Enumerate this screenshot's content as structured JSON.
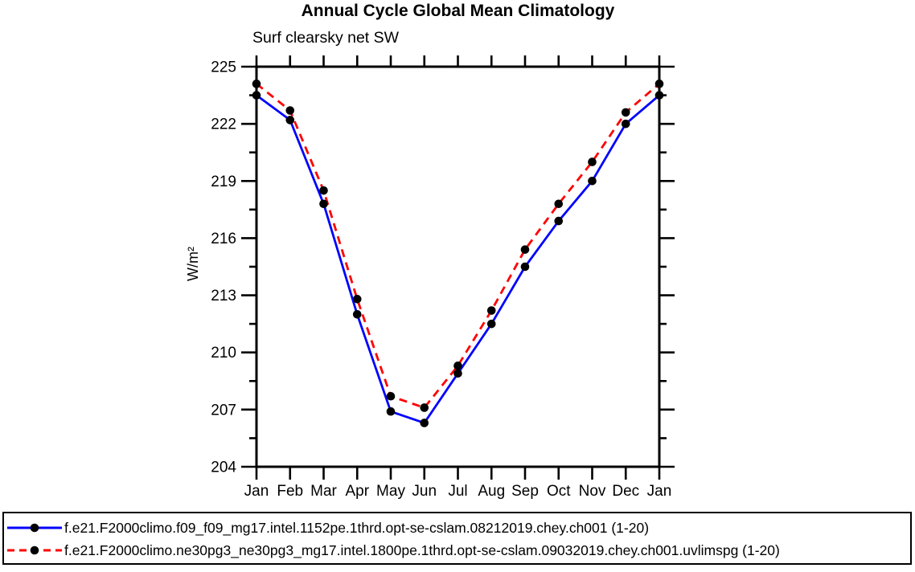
{
  "chart_data": {
    "type": "line",
    "title": "Annual Cycle Global Mean Climatology",
    "subtitle": "Surf clearsky net SW",
    "ylabel": "W/m²",
    "categories": [
      "Jan",
      "Feb",
      "Mar",
      "Apr",
      "May",
      "Jun",
      "Jul",
      "Aug",
      "Sep",
      "Oct",
      "Nov",
      "Dec",
      "Jan"
    ],
    "ylim": [
      204,
      225
    ],
    "ytick_step": 3,
    "yminor_step": 1.5,
    "ytick_labels": [
      "204",
      "207",
      "210",
      "213",
      "216",
      "219",
      "222",
      "225"
    ],
    "grid": false,
    "legend_position": "bottom",
    "axis_color": "#000000",
    "marker_color": "#000000",
    "series": [
      {
        "name": "f09-solid-blue",
        "label": "f.e21.F2000climo.f09_f09_mg17.intel.1152pe.1thrd.opt-se-cslam.08212019.chey.ch001 (1-20)",
        "color": "#0000ff",
        "style": "solid",
        "values": [
          223.5,
          222.2,
          217.8,
          212.0,
          206.9,
          206.3,
          208.9,
          211.5,
          214.5,
          216.9,
          219.0,
          222.0,
          223.5
        ]
      },
      {
        "name": "ne30pg3-dashed-red",
        "label": "f.e21.F2000climo.ne30pg3_ne30pg3_mg17.intel.1800pe.1thrd.opt-se-cslam.09032019.chey.ch001.uvlimspg (1-20)",
        "color": "#ff0000",
        "style": "dashed",
        "values": [
          224.1,
          222.7,
          218.5,
          212.8,
          207.7,
          207.1,
          209.3,
          212.2,
          215.4,
          217.8,
          220.0,
          222.6,
          224.1
        ]
      }
    ]
  }
}
